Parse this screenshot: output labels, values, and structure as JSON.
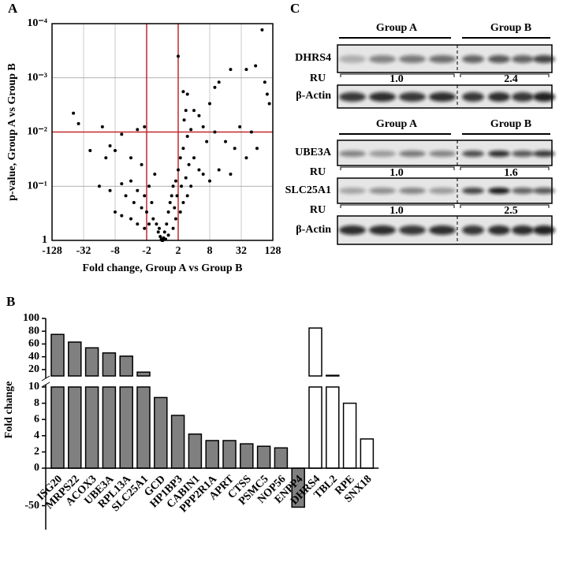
{
  "panel_labels": [
    "A",
    "B",
    "C"
  ],
  "chart_data": [
    {
      "type": "scatter",
      "xlabel": "Fold change, Group A vs Group B",
      "ylabel": "p-value, Group A vs Group B",
      "xscale": "signed-log2",
      "yscale": "log-reversed",
      "grid": true,
      "color": "#000000",
      "xlim": [
        -128,
        128
      ],
      "xticks": [
        -128,
        -32,
        -8,
        -2,
        2,
        8,
        32,
        128
      ],
      "ylim": [
        1,
        0.0001
      ],
      "yticks": [
        1,
        {
          "value": 0.1,
          "label": "10⁻¹"
        },
        {
          "value": 0.01,
          "label": "10⁻²"
        },
        {
          "value": 0.001,
          "label": "10⁻³"
        },
        {
          "value": 0.0001,
          "label": "10⁻⁴"
        }
      ],
      "threshold_lines": {
        "x": [
          -2,
          2
        ],
        "y": [
          0.01
        ],
        "color": "#c0282d"
      },
      "x": [
        -50,
        -40,
        -24,
        -14,
        -12,
        -10,
        -8,
        -6,
        -4,
        -3,
        -2.5,
        -2.2,
        -16,
        -10,
        -6,
        -5,
        -4,
        -3.5,
        -3,
        -2.5,
        -2.2,
        -2,
        -1.8,
        -1.6,
        -1.5,
        -1.4,
        -1.3,
        -1.2,
        -1.1,
        -1.05,
        -8,
        -6,
        -4,
        -3,
        -2.2,
        -1.8,
        80,
        90,
        100,
        110,
        60,
        40,
        20,
        12,
        10,
        2,
        2.5,
        3,
        2.8,
        4,
        5,
        6,
        8,
        10,
        16,
        24,
        30,
        40,
        50,
        64,
        3,
        2.5,
        2.2,
        2,
        1.8,
        1.6,
        1.5,
        1.4,
        1.3,
        1.2,
        1.1,
        1.05,
        4,
        5,
        6,
        8,
        3.5,
        3,
        2.5,
        2.2,
        1.8,
        1.6,
        12,
        20,
        1.3,
        1.15,
        -1.15,
        1.7,
        2.3,
        1.9,
        2.8,
        3.2,
        2.6,
        3.5,
        7,
        1.02,
        -1.02
      ],
      "y": [
        0.0045,
        0.007,
        0.022,
        0.008,
        0.03,
        0.018,
        0.022,
        0.011,
        0.03,
        0.009,
        0.04,
        0.008,
        0.1,
        0.12,
        0.09,
        0.15,
        0.08,
        0.2,
        0.12,
        0.25,
        0.15,
        0.3,
        0.1,
        0.2,
        0.4,
        0.06,
        0.5,
        0.7,
        0.85,
        0.95,
        0.3,
        0.35,
        0.4,
        0.5,
        0.6,
        0.5,
        0.00013,
        0.0012,
        0.002,
        0.003,
        0.0006,
        0.0007,
        0.0007,
        0.0012,
        0.0015,
        0.0004,
        0.0018,
        0.002,
        0.004,
        0.004,
        0.005,
        0.008,
        0.003,
        0.01,
        0.015,
        0.02,
        0.008,
        0.03,
        0.01,
        0.02,
        0.012,
        0.02,
        0.03,
        0.05,
        0.08,
        0.1,
        0.15,
        0.2,
        0.3,
        0.5,
        0.7,
        0.9,
        0.03,
        0.05,
        0.06,
        0.08,
        0.1,
        0.15,
        0.2,
        0.3,
        0.4,
        0.6,
        0.05,
        0.06,
        0.8,
        0.95,
        0.6,
        0.25,
        0.1,
        0.15,
        0.07,
        0.04,
        0.006,
        0.009,
        0.015,
        1.0,
        1.0
      ]
    },
    {
      "type": "bar",
      "ylabel": "Fold change",
      "categories": [
        "ISG20",
        "MRPS22",
        "ACOX3",
        "UBE3A",
        "RPL13A",
        "SLC25A1",
        "GCD",
        "HP1BP3",
        "CABIN1",
        "PPP2R1A",
        "APRT",
        "CTSS",
        "PSMC5",
        "NOP56",
        "ENPP4",
        "DHRS4",
        "TBL2",
        "RPE",
        "SNX18"
      ],
      "values": [
        75,
        63,
        54,
        46,
        41,
        16,
        8.7,
        6.5,
        4.2,
        3.4,
        3.4,
        3.0,
        2.7,
        2.5,
        -52,
        85,
        11,
        8,
        3.6
      ],
      "bar_colors": [
        "#808080",
        "#808080",
        "#808080",
        "#808080",
        "#808080",
        "#808080",
        "#808080",
        "#808080",
        "#808080",
        "#808080",
        "#808080",
        "#808080",
        "#808080",
        "#808080",
        "#808080",
        "#ffffff",
        "#ffffff",
        "#ffffff",
        "#ffffff"
      ],
      "axis_segments": [
        {
          "ylim": [
            10,
            100
          ],
          "yticks": [
            20,
            40,
            60,
            80,
            100
          ]
        },
        {
          "ylim": [
            0,
            10
          ],
          "yticks": [
            0,
            2,
            4,
            6,
            8,
            10
          ]
        },
        {
          "ylim": [
            -82,
            0
          ],
          "yticks": [
            -50
          ]
        }
      ]
    }
  ],
  "blot": {
    "sections": [
      {
        "groups": [
          "Group A",
          "Group B"
        ],
        "proteins": [
          "DHRS4",
          "β-Actin"
        ],
        "ru_label": "RU",
        "ru_values": [
          "1.0",
          "2.4"
        ]
      },
      {
        "groups": [
          "Group A",
          "Group B"
        ],
        "proteins": [
          "UBE3A",
          "SLC25A1",
          "β-Actin"
        ],
        "ru_rows": [
          {
            "label": "RU",
            "values": [
              "1.0",
              "1.6"
            ]
          },
          {
            "label": "RU",
            "values": [
              "1.0",
              "2.5"
            ]
          }
        ]
      }
    ]
  }
}
